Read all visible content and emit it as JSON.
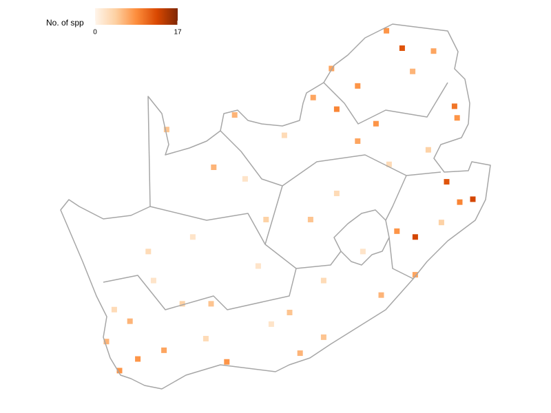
{
  "chart_data": {
    "type": "heatmap",
    "legend_title": "No. of spp",
    "clim": [
      0,
      17
    ],
    "cticks": [
      0,
      17
    ],
    "colors": [
      "#fff5eb",
      "#fdd0a2",
      "#fd8d3c",
      "#d94801",
      "#7f2704"
    ],
    "lon": [
      29.5,
      27.8,
      27.0,
      31.5,
      31.6,
      31.2,
      32.2,
      31.7,
      30.0,
      29.3,
      28.5,
      26.1,
      23.1,
      22.3,
      19.1,
      19.4,
      20.4,
      22.8,
      25.6,
      30.0,
      18.7,
      18.2,
      25.2,
      20.5,
      24.3,
      27.8,
      29.9,
      28.9,
      30.7,
      26.8,
      22.2,
      21.1,
      26.0,
      28.7,
      26.5,
      24.0,
      21.5,
      19.8,
      23.5,
      25.0,
      27.0,
      28.0,
      29.0,
      30.5,
      20.0,
      22.0,
      26.5,
      24.5,
      18.5,
      31.0
    ],
    "lat": [
      -23.0,
      -24.3,
      -25.1,
      -25.0,
      -25.4,
      -27.6,
      -28.2,
      -28.3,
      -29.5,
      -29.3,
      -25.6,
      -24.7,
      -25.3,
      -27.1,
      -32.4,
      -33.7,
      -33.4,
      -33.8,
      -33.5,
      -30.8,
      -34.1,
      -33.1,
      -32.1,
      -25.8,
      -28.9,
      -26.2,
      -23.8,
      -22.4,
      -23.1,
      -23.7,
      -31.8,
      -31.8,
      -28.9,
      -31.5,
      -32.95,
      -30.5,
      -29.5,
      -30.0,
      -27.5,
      -26.0,
      -28.0,
      -30.0,
      -27.0,
      -26.5,
      -31.0,
      -33.0,
      -31.0,
      -32.5,
      -32.0,
      -29.0
    ],
    "values": [
      12,
      8,
      9,
      10,
      8,
      12,
      13,
      9,
      13,
      8,
      8,
      7,
      6,
      6,
      6,
      8,
      7,
      8,
      6,
      7,
      8,
      6,
      5,
      5,
      4,
      7,
      6,
      8,
      7,
      7,
      5,
      4,
      5,
      6,
      5,
      2,
      2,
      3,
      2,
      3,
      3,
      2,
      3,
      4,
      2,
      3,
      3,
      2,
      3,
      4
    ]
  }
}
